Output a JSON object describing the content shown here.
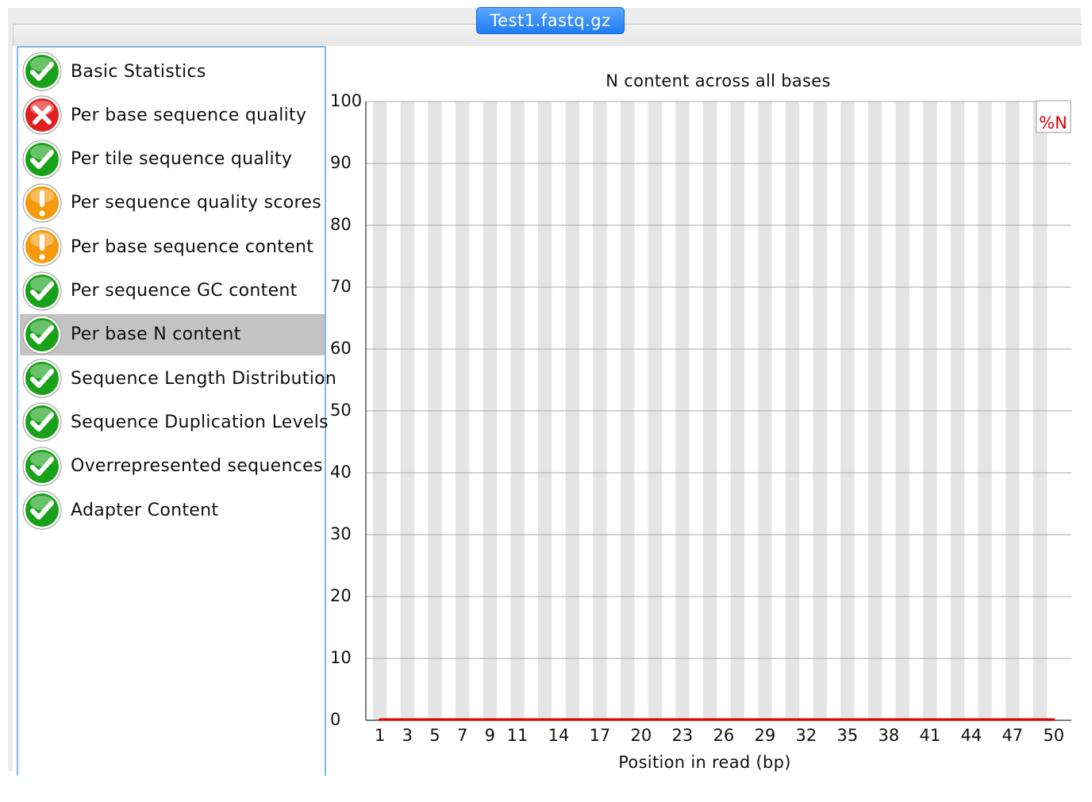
{
  "window": {
    "tab_title": "Test1.fastq.gz"
  },
  "sidebar": {
    "selected_index": 6,
    "items": [
      {
        "label": "Basic Statistics",
        "status": "pass"
      },
      {
        "label": "Per base sequence quality",
        "status": "fail"
      },
      {
        "label": "Per tile sequence quality",
        "status": "pass"
      },
      {
        "label": "Per sequence quality scores",
        "status": "warn"
      },
      {
        "label": "Per base sequence content",
        "status": "warn"
      },
      {
        "label": "Per sequence GC content",
        "status": "pass"
      },
      {
        "label": "Per base N content",
        "status": "pass"
      },
      {
        "label": "Sequence Length Distribution",
        "status": "pass"
      },
      {
        "label": "Sequence Duplication Levels",
        "status": "pass"
      },
      {
        "label": "Overrepresented sequences",
        "status": "pass"
      },
      {
        "label": "Adapter Content",
        "status": "pass"
      }
    ]
  },
  "status_icons": {
    "pass": "check-circle-green-icon",
    "fail": "x-circle-red-icon",
    "warn": "exclamation-circle-orange-icon"
  },
  "colors": {
    "pass": "#1aa11a",
    "fail": "#e0201f",
    "warn": "#f59a0c",
    "series": "#e00000",
    "band": "#e5e5e5",
    "selection": "#c3c3c3",
    "tab": "#2a86f5"
  },
  "chart_data": {
    "type": "line",
    "title": "N content across all bases",
    "xlabel": "Position in read (bp)",
    "ylabel": "",
    "ylim": [
      0,
      100
    ],
    "yticks": [
      0,
      10,
      20,
      30,
      40,
      50,
      60,
      70,
      80,
      90,
      100
    ],
    "x": [
      "1",
      "2",
      "3",
      "4",
      "5",
      "6",
      "7",
      "8",
      "9",
      "10",
      "11",
      "12",
      "13",
      "14",
      "15",
      "16",
      "17",
      "18",
      "19",
      "20",
      "21",
      "22",
      "23",
      "24",
      "25",
      "26",
      "27",
      "28",
      "29",
      "30",
      "31",
      "32",
      "33",
      "34",
      "35",
      "36",
      "37",
      "38",
      "39",
      "40",
      "41",
      "42",
      "43",
      "44",
      "45",
      "46",
      "47",
      "48",
      "49",
      "50"
    ],
    "xtick_labels": [
      "1",
      "3",
      "5",
      "7",
      "9",
      "11",
      "14",
      "17",
      "20",
      "23",
      "26",
      "29",
      "32",
      "35",
      "38",
      "41",
      "44",
      "47",
      "50"
    ],
    "xtick_indices": [
      0,
      2,
      4,
      6,
      8,
      10,
      13,
      16,
      19,
      22,
      25,
      28,
      31,
      34,
      37,
      40,
      43,
      46,
      49
    ],
    "series": [
      {
        "name": "%N",
        "values": [
          0,
          0,
          0,
          0,
          0,
          0,
          0,
          0,
          0,
          0,
          0,
          0,
          0,
          0,
          0,
          0,
          0,
          0,
          0,
          0,
          0,
          0,
          0,
          0,
          0,
          0,
          0,
          0,
          0,
          0,
          0,
          0,
          0,
          0,
          0,
          0,
          0,
          0,
          0,
          0,
          0,
          0,
          0,
          0,
          0,
          0,
          0,
          0,
          0,
          0
        ]
      }
    ],
    "grid": true,
    "legend": "top-right"
  }
}
